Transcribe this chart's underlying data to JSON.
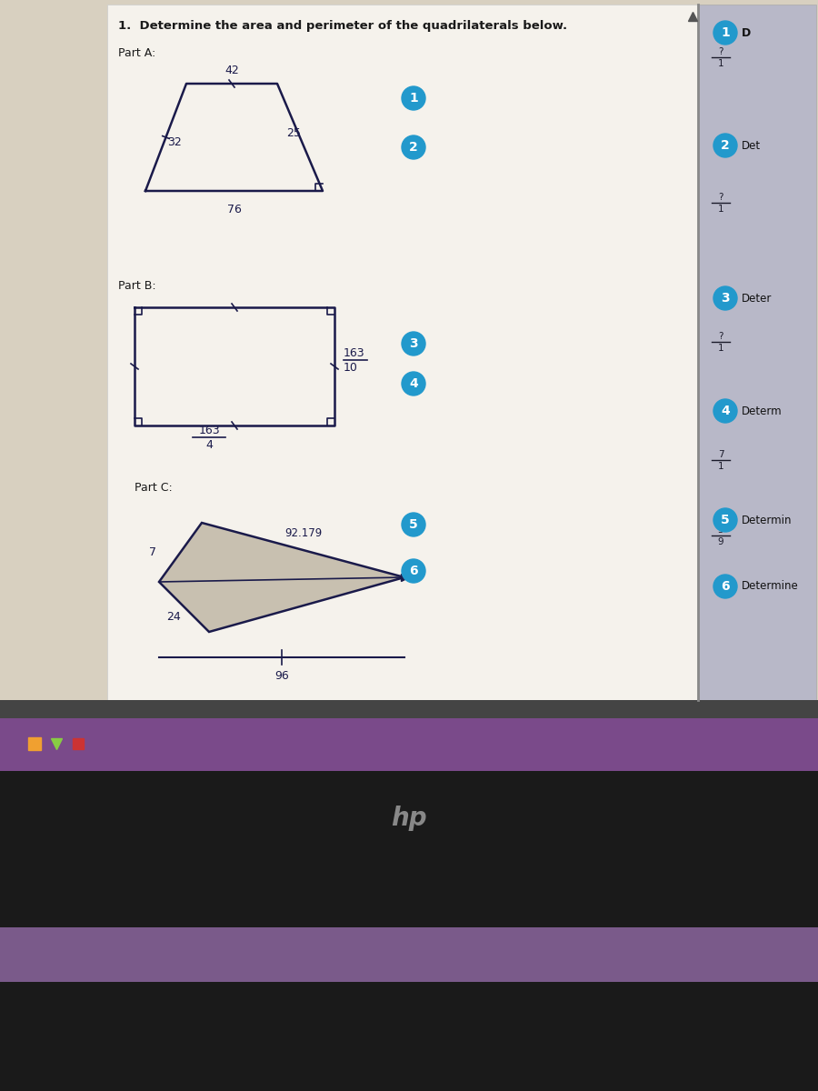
{
  "title": "1.  Determine the area and perimeter of the quadrilaterals below.",
  "screen_bg": "#2a2a2a",
  "taskbar_color": "#7a4a8a",
  "part_a_label": "Part A:",
  "part_b_label": "Part B:",
  "part_c_label": "Part C:",
  "circle_color": "#2299cc",
  "shape_color": "#1a1a4a",
  "text_color": "#1a1a4a",
  "fraction_color": "#1a1a4a",
  "doc_bg": "#f5f2ec",
  "sidebar_bg": "#b8b8c8",
  "beige_bg": "#d8d0c0"
}
